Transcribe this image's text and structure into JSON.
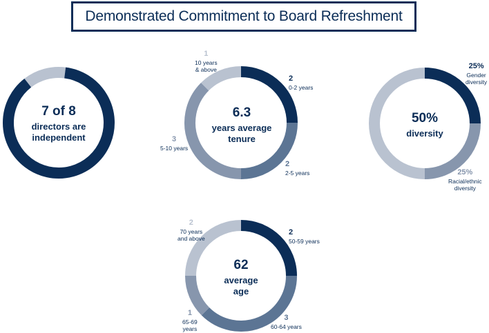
{
  "title": "Demonstrated Commitment to Board Refreshment",
  "colors": {
    "dark_navy": "#0b2d57",
    "slate_blue": "#5c7594",
    "gray_blue": "#8796ad",
    "light_gray": "#b9c2d0"
  },
  "independence": {
    "big": "7 of 8",
    "line1": "directors are",
    "line2": "independent"
  },
  "tenure": {
    "big": "6.3",
    "line1": "years average",
    "line2": "tenure"
  },
  "diversity": {
    "big": "50%",
    "line1": "diversity"
  },
  "age": {
    "big": "62",
    "line1": "average",
    "line2": "age"
  },
  "labels": {
    "tenure_0_2": {
      "num": "2",
      "text": "0-2 years"
    },
    "tenure_2_5": {
      "num": "2",
      "text": "2-5 years"
    },
    "tenure_5_10": {
      "num": "3",
      "text": "5-10 years"
    },
    "tenure_10_plus": {
      "num": "1",
      "text1": "10 years",
      "text2": "& above"
    },
    "gender": {
      "num": "25%",
      "text1": "Gender",
      "text2": "diversity"
    },
    "racial": {
      "num": "25%",
      "text1": "Racial/ethnic",
      "text2": "diversity"
    },
    "age_50_59": {
      "num": "2",
      "text": "50-59 years"
    },
    "age_60_64": {
      "num": "3",
      "text": "60-64 years"
    },
    "age_65_69": {
      "num": "1",
      "text1": "65-69",
      "text2": "years"
    },
    "age_70_plus": {
      "num": "2",
      "text1": "70 years",
      "text2": "and above"
    }
  },
  "chart_data": [
    {
      "type": "pie",
      "name": "independence",
      "categories": [
        "Independent",
        "Not independent"
      ],
      "values": [
        7,
        1
      ],
      "colors": [
        "#0b2d57",
        "#b9c2d0"
      ],
      "start": "not-independent-first"
    },
    {
      "type": "pie",
      "name": "tenure",
      "categories": [
        "0-2 years",
        "2-5 years",
        "5-10 years",
        "10 years & above"
      ],
      "values": [
        2,
        2,
        3,
        1
      ],
      "colors": [
        "#0b2d57",
        "#5c7594",
        "#8796ad",
        "#b9c2d0"
      ]
    },
    {
      "type": "pie",
      "name": "diversity",
      "categories": [
        "Gender diversity",
        "Racial/ethnic diversity",
        "Not diverse"
      ],
      "values": [
        25,
        25,
        50
      ],
      "colors": [
        "#0b2d57",
        "#8796ad",
        "#b9c2d0"
      ]
    },
    {
      "type": "pie",
      "name": "age",
      "categories": [
        "50-59 years",
        "60-64 years",
        "65-69 years",
        "70 years and above"
      ],
      "values": [
        2,
        3,
        1,
        2
      ],
      "colors": [
        "#0b2d57",
        "#5c7594",
        "#8796ad",
        "#b9c2d0"
      ]
    }
  ]
}
